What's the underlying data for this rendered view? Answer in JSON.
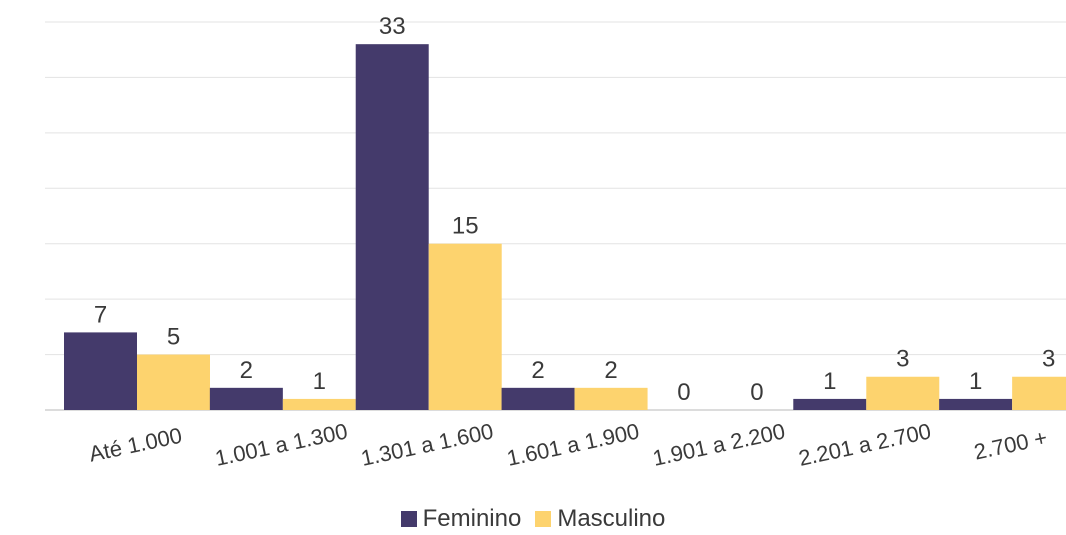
{
  "chart_data": {
    "type": "bar",
    "categories": [
      "Até 1.000",
      "1.001 a 1.300",
      "1.301 a 1.600",
      "1.601 a 1.900",
      "1.901 a 2.200",
      "2.201 a 2.700",
      "2.700 +"
    ],
    "series": [
      {
        "name": "Feminino",
        "values": [
          7,
          2,
          33,
          2,
          0,
          1,
          1
        ],
        "color": "#443A6B"
      },
      {
        "name": "Masculino",
        "values": [
          5,
          1,
          15,
          2,
          0,
          3,
          3
        ],
        "color": "#FDD36E"
      }
    ],
    "ylim": [
      0,
      35
    ],
    "grid": true,
    "legend_position": "bottom"
  }
}
